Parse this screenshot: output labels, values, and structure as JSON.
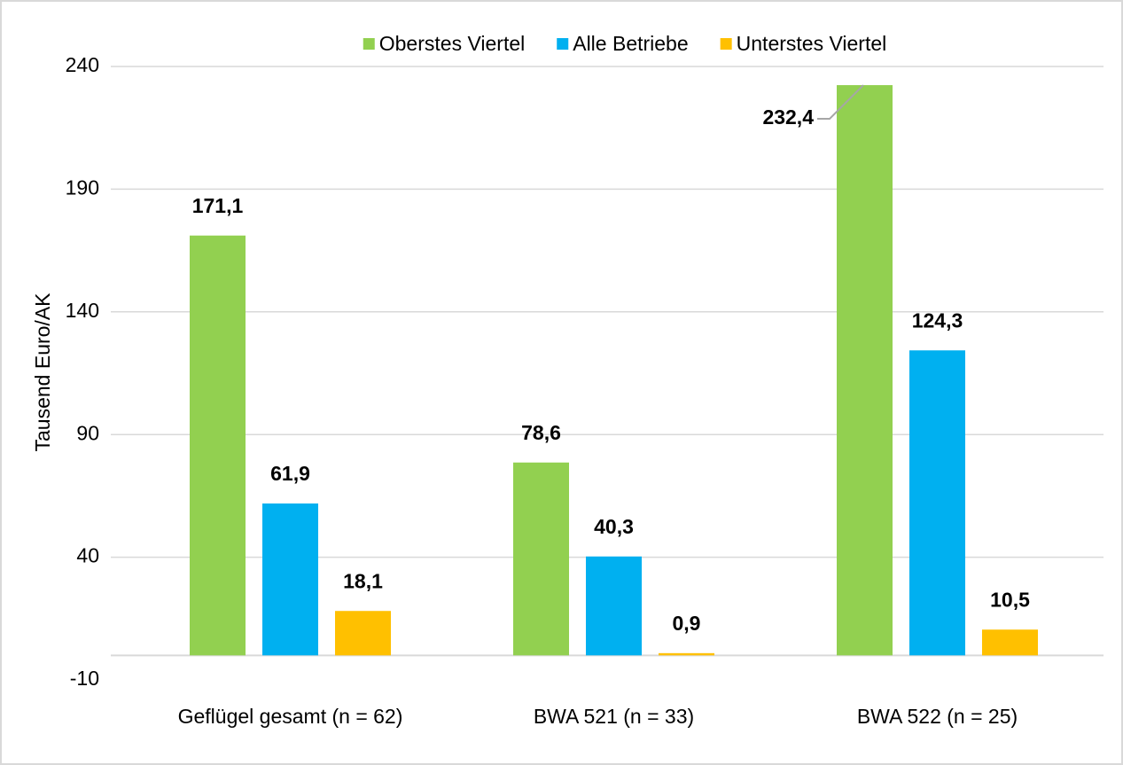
{
  "chart_data": {
    "type": "bar",
    "y_axis_label": "Tausend Euro/AK",
    "categories": [
      "Geflügel gesamt (n = 62)",
      "BWA 521 (n = 33)",
      "BWA 522 (n = 25)"
    ],
    "series": [
      {
        "name": "Oberstes Viertel",
        "color": "#92d050",
        "values": [
          171.1,
          78.6,
          232.4
        ],
        "value_labels": [
          "171,1",
          "78,6",
          "232,4"
        ]
      },
      {
        "name": "Alle Betriebe",
        "color": "#00b0f0",
        "values": [
          61.9,
          40.3,
          124.3
        ],
        "value_labels": [
          "61,9",
          "40,3",
          "124,3"
        ]
      },
      {
        "name": "Unterstes Viertel",
        "color": "#ffc000",
        "values": [
          18.1,
          0.9,
          10.5
        ],
        "value_labels": [
          "18,1",
          "0,9",
          "10,5"
        ]
      }
    ],
    "ylim": [
      -10,
      240
    ],
    "yticks": [
      -10,
      40,
      90,
      140,
      190,
      240
    ],
    "grid": true,
    "legend": "top"
  }
}
